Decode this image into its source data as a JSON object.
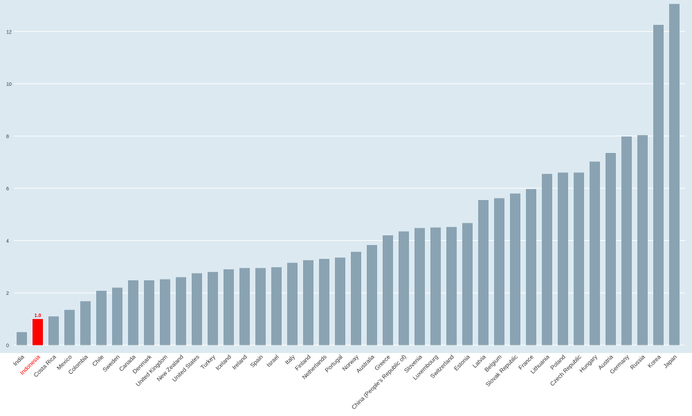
{
  "colors": {
    "plot_background": "#dce9f1",
    "gridline": "#ffffff",
    "bar": "#8aa3b3",
    "highlight_bar": "#ff0000",
    "highlight_text": "#ff0000",
    "tick_text": "#333333"
  },
  "chart_data": {
    "type": "bar",
    "title": "",
    "xlabel": "",
    "ylabel": "",
    "ylim": [
      -0.3,
      13.2
    ],
    "yticks": [
      0,
      2,
      4,
      6,
      8,
      10,
      12
    ],
    "grid": true,
    "legend": "none",
    "highlight": {
      "category": "Indonesia",
      "label": "1.0"
    },
    "categories": [
      "India",
      "Indonesia",
      "Costa Rica",
      "Mexico",
      "Colombia",
      "Chile",
      "Sweden",
      "Canada",
      "Denmark",
      "United Kingdom",
      "New Zealand",
      "United States",
      "Turkey",
      "Iceland",
      "Ireland",
      "Spain",
      "Israel",
      "Italy",
      "Finland",
      "Netherlands",
      "Portugal",
      "Norway",
      "Australia",
      "Greece",
      "China (People's Republic of)",
      "Slovenia",
      "Luxembourg",
      "Switzerland",
      "Estonia",
      "Latvia",
      "Belgium",
      "Slovak Republic",
      "France",
      "Lithuania",
      "Poland",
      "Czech Republic",
      "Hungary",
      "Austria",
      "Germany",
      "Russia",
      "Korea",
      "Japan"
    ],
    "values": [
      0.5,
      1.0,
      1.1,
      1.35,
      1.68,
      2.08,
      2.2,
      2.48,
      2.48,
      2.52,
      2.6,
      2.75,
      2.8,
      2.9,
      2.95,
      2.95,
      2.98,
      3.15,
      3.25,
      3.3,
      3.35,
      3.57,
      3.83,
      4.2,
      4.35,
      4.48,
      4.5,
      4.52,
      4.67,
      5.55,
      5.62,
      5.8,
      5.97,
      6.55,
      6.6,
      6.6,
      7.02,
      7.35,
      7.98,
      8.03,
      12.25,
      13.05
    ]
  }
}
